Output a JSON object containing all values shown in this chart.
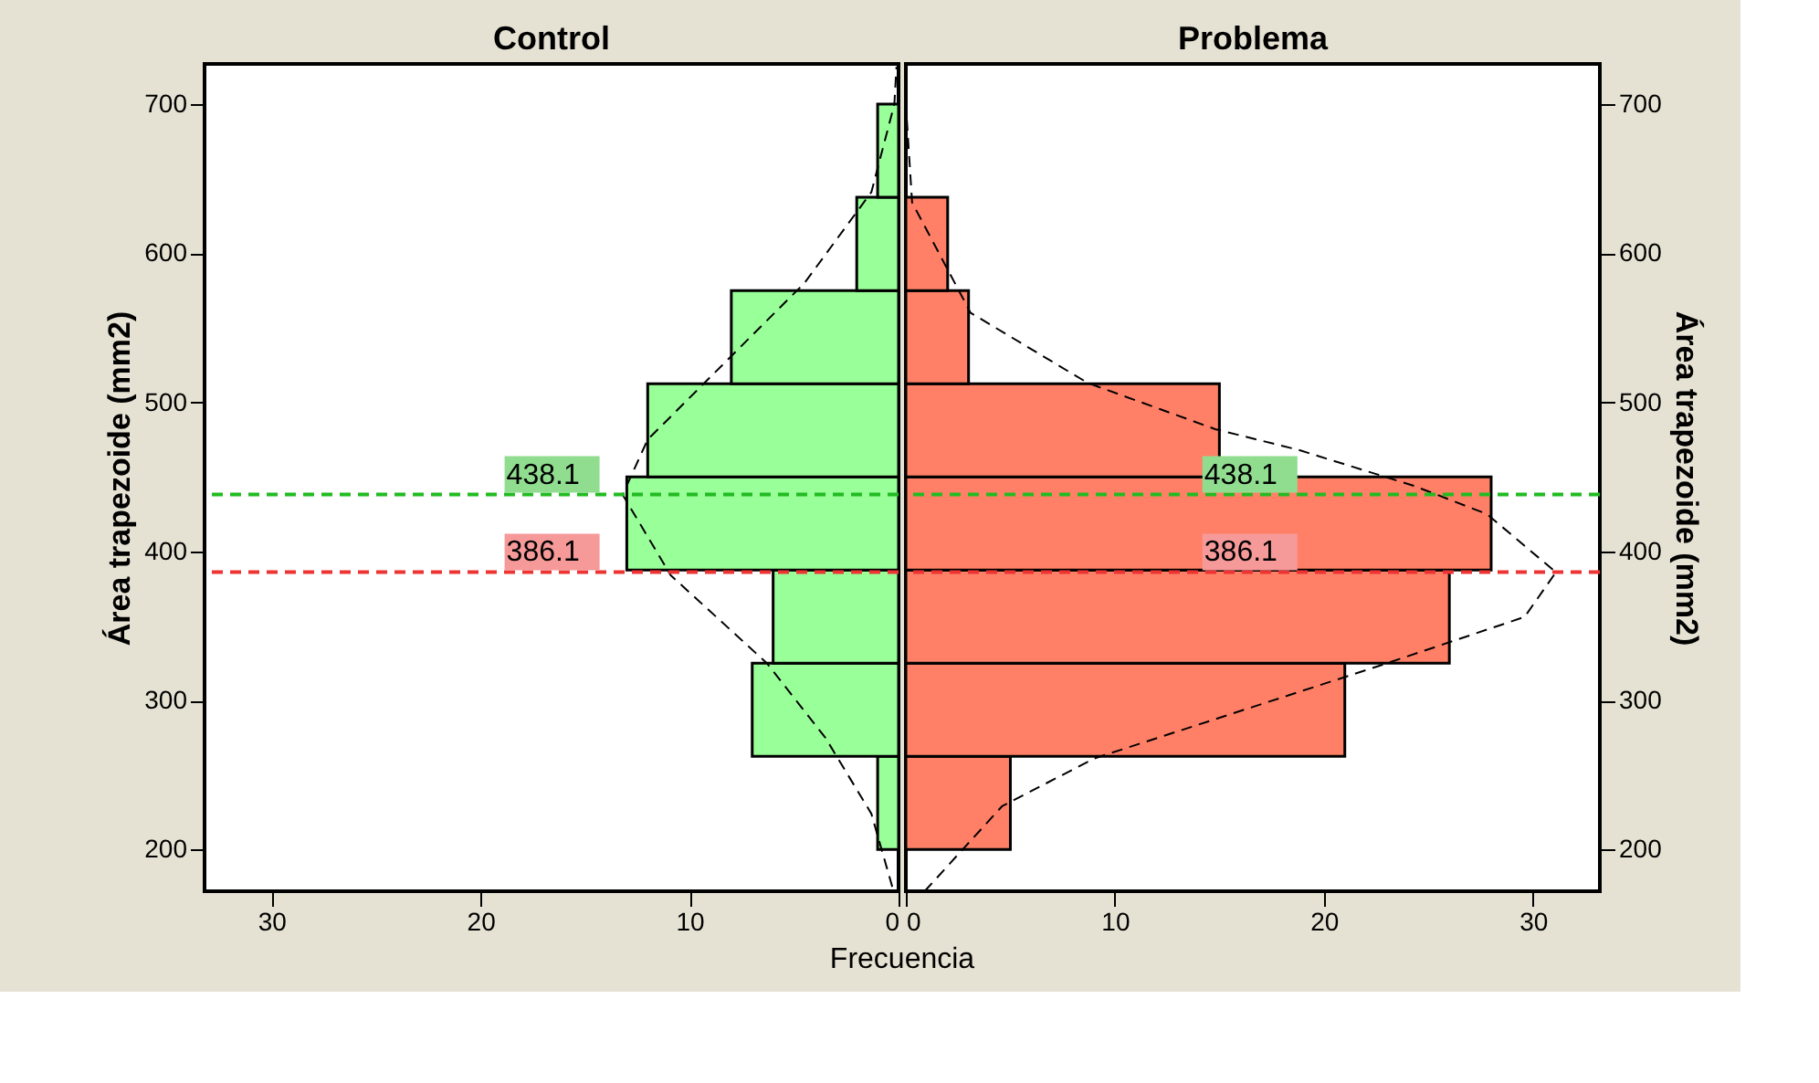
{
  "chart_data": [
    {
      "type": "histogram",
      "orientation": "horizontal",
      "title": "Control",
      "xlabel": "Frecuencia",
      "ylabel": "Área trapezoide (mm2)",
      "bins": [
        200,
        262.5,
        325,
        387.5,
        450,
        512.5,
        575,
        637.5,
        700
      ],
      "values": [
        1,
        7,
        6,
        13,
        12,
        8,
        2,
        1
      ],
      "color": "#99ff99",
      "xlim": [
        33.2,
        0
      ],
      "xticks": [
        30,
        20,
        10,
        0
      ],
      "ylim": [
        172,
        727
      ],
      "yticks": [
        200,
        300,
        400,
        500,
        600,
        700
      ],
      "grid": false,
      "series": [
        {
          "type": "line",
          "color": "#000000",
          "line_style": "dashed",
          "x": [
            175,
            224,
            275,
            325,
            384,
            438,
            475,
            531,
            580,
            641,
            700,
            725
          ],
          "values": [
            0.3,
            1.3,
            3.5,
            6.3,
            10.9,
            13.2,
            12,
            8,
            4.5,
            1.3,
            0.2,
            0.1
          ]
        }
      ],
      "ref_lines": [
        {
          "axis": "y",
          "value": 438.1,
          "label": "438.1",
          "color": "#22bb22",
          "line_style": "dashed"
        },
        {
          "axis": "y",
          "value": 386.1,
          "label": "386.1",
          "color": "#ee3333",
          "line_style": "dashed"
        }
      ]
    },
    {
      "type": "histogram",
      "orientation": "horizontal",
      "title": "Problema",
      "ylabel": "Área trapezoide (mm2)",
      "bins": [
        200,
        262.5,
        325,
        387.5,
        450,
        512.5,
        575,
        637.5,
        700
      ],
      "values": [
        5,
        21,
        26,
        28,
        15,
        3,
        2,
        0
      ],
      "color": "#ff8066",
      "xlim": [
        0,
        33.2
      ],
      "xticks": [
        0,
        10,
        20,
        30
      ],
      "ylim": [
        172,
        727
      ],
      "yticks": [
        200,
        300,
        400,
        500,
        600,
        700
      ],
      "grid": false,
      "series": [
        {
          "type": "line",
          "color": "#000000",
          "line_style": "dashed",
          "x": [
            172,
            229,
            261,
            323,
            356,
            386,
            425,
            444,
            468,
            482,
            513,
            560,
            634,
            700
          ],
          "values": [
            0.9,
            4.6,
            9,
            22.6,
            29.6,
            31.1,
            27.8,
            24.3,
            18.8,
            14.8,
            8.7,
            3.1,
            0.3,
            0
          ]
        }
      ],
      "ref_lines": [
        {
          "axis": "y",
          "value": 438.1,
          "label": "438.1",
          "color": "#22bb22",
          "line_style": "dashed"
        },
        {
          "axis": "y",
          "value": 386.1,
          "label": "386.1",
          "color": "#ee3333",
          "line_style": "dashed"
        }
      ]
    }
  ]
}
